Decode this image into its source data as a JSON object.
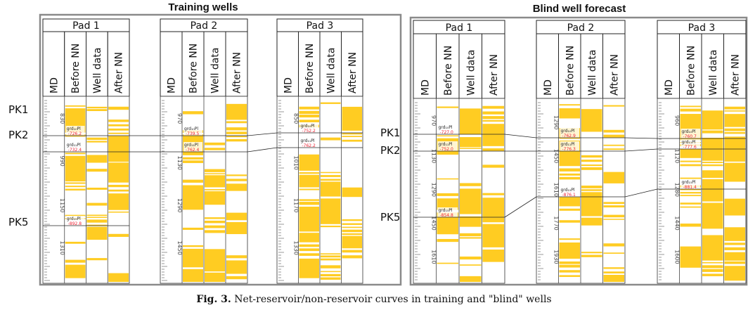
{
  "figure": {
    "panels": [
      {
        "title": "Training wells",
        "pk_labels": [
          "PK1",
          "PK2",
          "PK5"
        ],
        "pads": [
          {
            "name": "Pad 1",
            "columns": [
              "MD",
              "Before NN",
              "Well data",
              "After NN"
            ],
            "depth_ticks": [
              "830",
              "990",
              "1150",
              "1310"
            ],
            "markers": [
              {
                "name": "grd₁₀Pl",
                "value": "-726.2"
              },
              {
                "name": "grd₁₁Pl",
                "value": "-732.4"
              },
              {
                "name": "grd₁₅Pl",
                "value": "-892.8"
              }
            ]
          },
          {
            "name": "Pad 2",
            "columns": [
              "MD",
              "Before NN",
              "Well data",
              "After NN"
            ],
            "depth_ticks": [
              "970",
              "1130",
              "1290",
              "1450"
            ],
            "markers": [
              {
                "name": "grd₁₀Pl",
                "value": "-739.5"
              },
              {
                "name": "grd₁₁Pl",
                "value": "-762.4"
              }
            ]
          },
          {
            "name": "Pad 3",
            "columns": [
              "MD",
              "Before NN",
              "Well data",
              "After NN"
            ],
            "depth_ticks": [
              "850",
              "1010",
              "1170",
              "1330"
            ],
            "markers": [
              {
                "name": "grd₁₀Pl",
                "value": "-752.2"
              },
              {
                "name": "grd₁₁Pl",
                "value": "-762.2"
              }
            ]
          }
        ]
      },
      {
        "title": "Blind well forecast",
        "pk_labels": [
          "PK1",
          "PK2",
          "PK5"
        ],
        "pads": [
          {
            "name": "Pad 1",
            "columns": [
              "MD",
              "Before NN",
              "Well data",
              "After NN"
            ],
            "depth_ticks": [
              "970",
              "1130",
              "1290",
              "1450",
              "1610"
            ],
            "markers": [
              {
                "name": "grd₁₀Pl",
                "value": "-727.0"
              },
              {
                "name": "grd₁₁Pl",
                "value": "-752.0"
              },
              {
                "name": "grd₁₅Pl",
                "value": "-854.8"
              }
            ]
          },
          {
            "name": "Pad 2",
            "columns": [
              "MD",
              "Before NN",
              "Well data",
              "After NN"
            ],
            "depth_ticks": [
              "1290",
              "1450",
              "1610",
              "1770",
              "1930"
            ],
            "markers": [
              {
                "name": "grd₁₀Pl",
                "value": "-762.9"
              },
              {
                "name": "grd₁₁Pl",
                "value": "-776.3"
              },
              {
                "name": "grd₁₅Pl",
                "value": "-876.1"
              }
            ]
          },
          {
            "name": "Pad 3",
            "columns": [
              "MD",
              "Before NN",
              "Well data",
              "After NN"
            ],
            "depth_ticks": [
              "960",
              "1120",
              "1280",
              "1440",
              "1600"
            ],
            "markers": [
              {
                "name": "grd₁₀Pl",
                "value": "-760.7"
              },
              {
                "name": "grd₁₁Pl",
                "value": "-777.6"
              },
              {
                "name": "grd₁₅Pl",
                "value": "-881.4"
              }
            ]
          }
        ]
      }
    ],
    "caption_label": "Fig. 3.",
    "caption_text": "Net-reservoir/non-reservoir curves in training and \"blind\" wells",
    "colors": {
      "reservoir": "#ffcc22",
      "frame": "#888888",
      "marker_value": "#e23333"
    }
  }
}
